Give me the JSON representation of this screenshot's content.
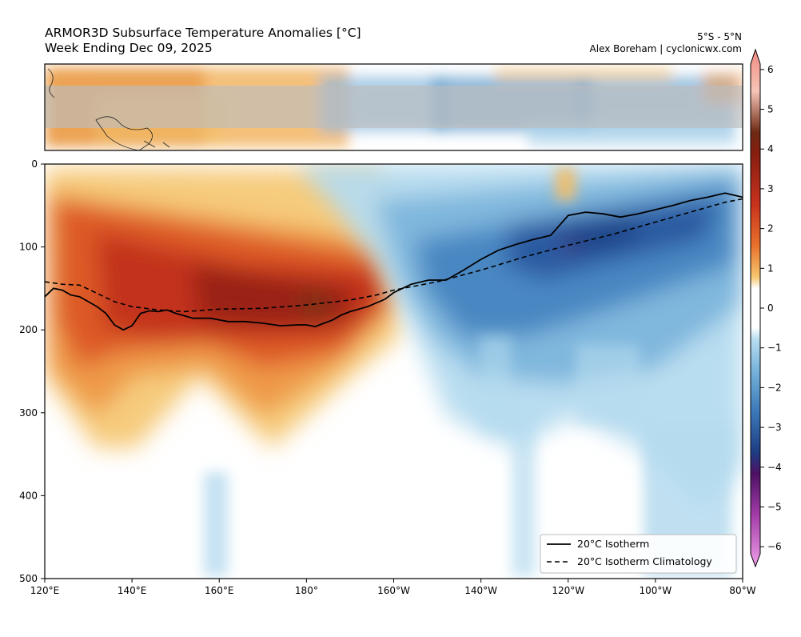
{
  "title_line1": "ARMOR3D Subsurface Temperature Anomalies [°C]",
  "title_line2": "Week Ending Dec 09, 2025",
  "latband": "5°S - 5°N",
  "author": "Alex Boreham | cyclonicwx.com",
  "chart_data": {
    "type": "heatmap",
    "title": "ARMOR3D Subsurface Temperature Anomalies [°C]",
    "subtitle": "Week Ending Dec 09, 2025",
    "x_ticks": [
      "120°E",
      "140°E",
      "160°E",
      "180°",
      "160°W",
      "140°W",
      "120°W",
      "100°W",
      "80°W"
    ],
    "x_tick_values": [
      120,
      140,
      160,
      180,
      200,
      220,
      240,
      260,
      280
    ],
    "y_ticks": [
      "0",
      "100",
      "200",
      "300",
      "400",
      "500"
    ],
    "y_tick_values": [
      0,
      100,
      200,
      300,
      400,
      500
    ],
    "xlim": [
      120,
      280
    ],
    "ylim": [
      500,
      0
    ],
    "colorbar": {
      "ticks": [
        "6",
        "5",
        "4",
        "3",
        "2",
        "1",
        "0",
        "−1",
        "−2",
        "−3",
        "−4",
        "−5",
        "−6"
      ],
      "tick_values": [
        6,
        5,
        4,
        3,
        2,
        1,
        0,
        -1,
        -2,
        -3,
        -4,
        -5,
        -6
      ],
      "range": [
        -6.5,
        6.5
      ]
    },
    "series": [
      {
        "name": "20°C Isotherm",
        "style": "solid",
        "x": [
          120,
          122,
          124,
          126,
          128,
          130,
          132,
          134,
          136,
          138,
          140,
          142,
          144,
          146,
          148,
          150,
          154,
          158,
          162,
          166,
          170,
          174,
          178,
          180,
          182,
          184,
          186,
          188,
          190,
          194,
          198,
          200,
          204,
          208,
          212,
          216,
          220,
          224,
          228,
          232,
          236,
          240,
          244,
          248,
          252,
          256,
          260,
          264,
          268,
          272,
          276,
          280
        ],
        "y": [
          160,
          150,
          152,
          158,
          160,
          166,
          172,
          180,
          194,
          200,
          195,
          180,
          177,
          178,
          176,
          180,
          186,
          186,
          190,
          190,
          192,
          195,
          194,
          194,
          196,
          192,
          188,
          182,
          178,
          172,
          163,
          155,
          145,
          140,
          140,
          128,
          115,
          104,
          97,
          91,
          86,
          62,
          58,
          60,
          64,
          60,
          55,
          50,
          44,
          40,
          35,
          40
        ]
      },
      {
        "name": "20°C Isotherm Climatology",
        "style": "dashed",
        "x": [
          120,
          124,
          128,
          132,
          136,
          140,
          146,
          152,
          160,
          170,
          180,
          190,
          196,
          200,
          210,
          220,
          230,
          240,
          250,
          260,
          270,
          276,
          280
        ],
        "y": [
          142,
          145,
          146,
          156,
          166,
          172,
          176,
          178,
          175,
          174,
          170,
          164,
          158,
          152,
          142,
          128,
          112,
          98,
          85,
          70,
          55,
          46,
          42
        ]
      }
    ],
    "anomaly_regions": [
      {
        "label": "warm",
        "x_range": [
          120,
          200
        ],
        "depth_range": [
          30,
          350
        ],
        "peak_value": 4.5,
        "peak_location": [
          178,
          175
        ]
      },
      {
        "label": "cold",
        "x_range": [
          200,
          280
        ],
        "depth_range": [
          30,
          300
        ],
        "peak_value": -4.5,
        "peak_location": [
          240,
          100
        ]
      },
      {
        "label": "cold-deep",
        "x_range": [
          240,
          280
        ],
        "depth_range": [
          300,
          500
        ],
        "peak_value": -1.5
      }
    ]
  },
  "legend": {
    "solid_label": "20°C Isotherm",
    "dashed_label": "20°C Isotherm Climatology",
    "position": "lower-right"
  },
  "colors": {
    "warm_strong": "#7b1d10",
    "warm": "#c9391c",
    "warm_mid": "#e8772f",
    "warm_light": "#f6c66e",
    "cold_light": "#b6dcef",
    "cold": "#5b9bc9",
    "cold_strong": "#1f4e94",
    "mask": "#c8c8c8"
  }
}
